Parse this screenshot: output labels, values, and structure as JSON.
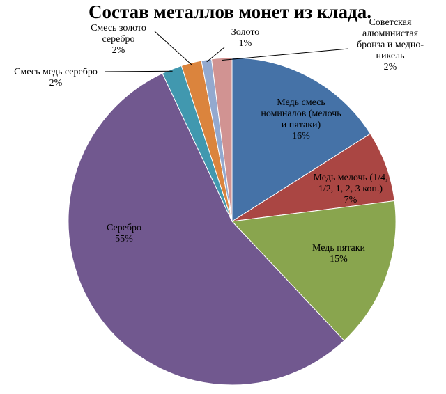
{
  "chart_data": {
    "type": "pie",
    "title": "Состав металлов монет из клада.",
    "categories": [
      "Медь смесь номиналов  (мелочь и пятаки)",
      "Медь мелочь (1/4, 1/2, 1, 2, 3 коп.)",
      "Медь пятаки",
      "Серебро",
      "Смесь медь серебро",
      "Смесь золото серебро",
      "Золото",
      "Советская алюминистая бронза и медно-никель"
    ],
    "values": [
      16,
      7,
      15,
      55,
      2,
      2,
      1,
      2
    ],
    "value_labels": [
      "16%",
      "7%",
      "15%",
      "55%",
      "2%",
      "2%",
      "1%",
      "2%"
    ],
    "colors": [
      "#4572a7",
      "#aa4643",
      "#89a54e",
      "#71588f",
      "#4198af",
      "#db843d",
      "#93a9cf",
      "#d19392"
    ]
  }
}
